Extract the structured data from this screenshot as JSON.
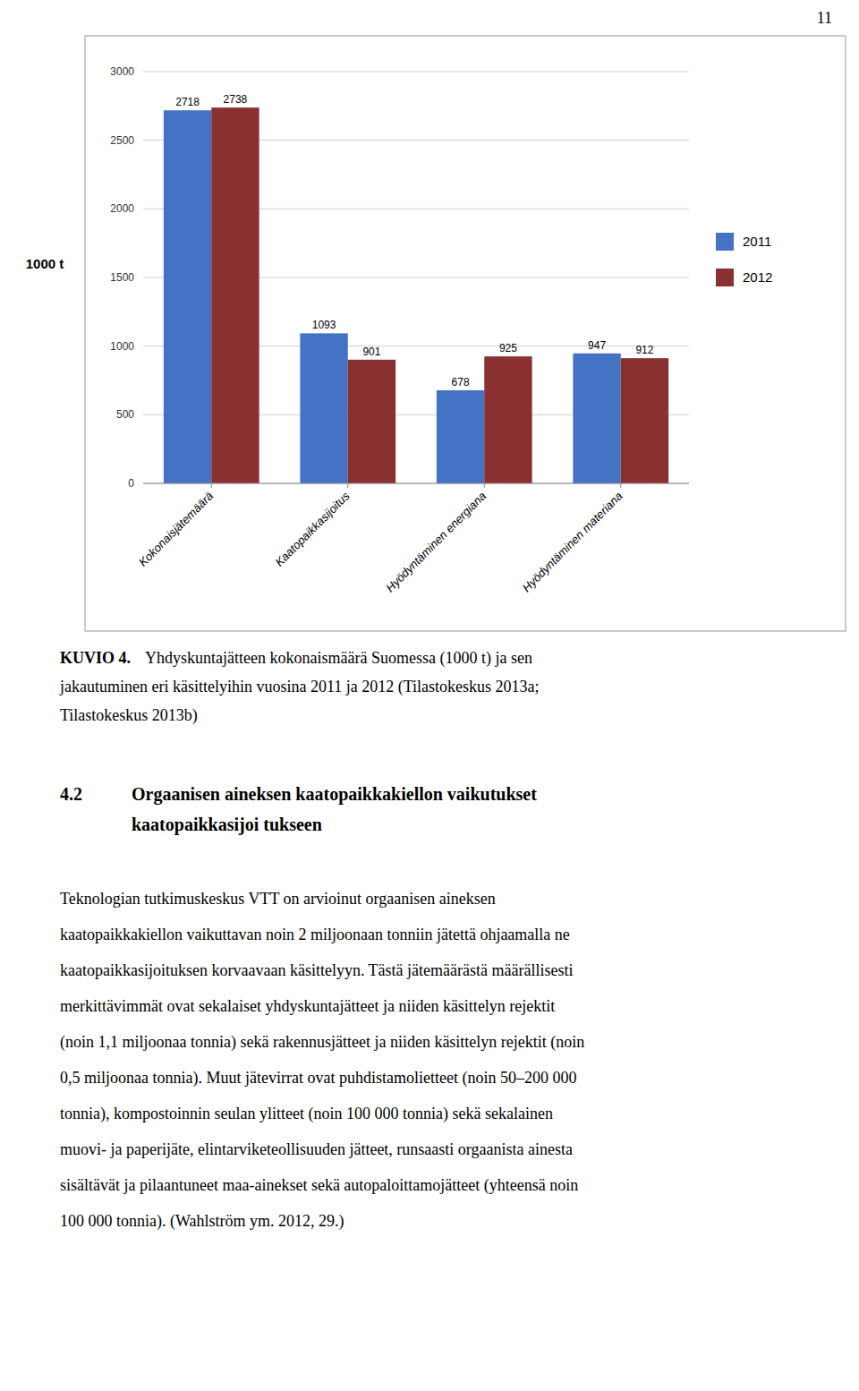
{
  "chart_data": {
    "type": "bar",
    "categories": [
      "Kokonaisjätemäärä",
      "Kaatopaikkasijoitus",
      "Hyödyntäminen energiana",
      "Hyödyntäminen materiana"
    ],
    "series": [
      {
        "name": "2011",
        "color": "#4472C4",
        "values": [
          2718,
          1093,
          678,
          947
        ]
      },
      {
        "name": "2012",
        "color": "#8B3030",
        "values": [
          2738,
          901,
          925,
          912
        ]
      }
    ],
    "y_label": "1000 t",
    "ylim": [
      0,
      3000
    ],
    "yticks": [
      0,
      500,
      1000,
      1500,
      2000,
      2500,
      3000
    ],
    "grid": true,
    "legend": "right",
    "data_labels": true
  },
  "page_number": "11",
  "caption_label": "KUVIO 4.",
  "caption_lines": [
    "Yhdyskuntajätteen kokonaismäärä Suomessa (1000 t) ja sen",
    "jakautuminen eri käsittelyihin vuosina 2011 ja 2012 (Tilastokeskus 2013a;",
    "Tilastokeskus 2013b)"
  ],
  "heading_number": "4.2",
  "heading_lines": [
    "Orgaanisen aineksen kaatopaikkakiellon vaikutukset",
    "kaatopaikkasijoi tukseen"
  ],
  "body_lines": [
    "Teknologian tutkimuskeskus VTT on arvioinut orgaanisen aineksen",
    "kaatopaikkakiellon vaikuttavan noin 2 miljoonaan tonniin jätettä ohjaamalla ne",
    "kaatopaikkasijoituksen korvaavaan käsittelyyn. Tästä jätemäärästä määrällisesti",
    "merkittävimmät ovat sekalaiset yhdyskuntajätteet ja niiden käsittelyn rejektit",
    "(noin 1,1 miljoonaa tonnia) sekä rakennusjätteet ja niiden käsittelyn rejektit (noin",
    "0,5 miljoonaa tonnia). Muut jätevirrat ovat puhdistamolietteet (noin 50–200 000",
    "tonnia), kompostoinnin seulan ylitteet (noin 100 000 tonnia) sekä sekalainen",
    "muovi- ja paperijäte, elintarviketeollisuuden jätteet, runsaasti orgaanista ainesta",
    "sisältävät ja pilaantuneet maa-ainekset sekä autopaloittamojätteet (yhteensä noin",
    "100 000 tonnia). (Wahlström ym. 2012, 29.)"
  ]
}
